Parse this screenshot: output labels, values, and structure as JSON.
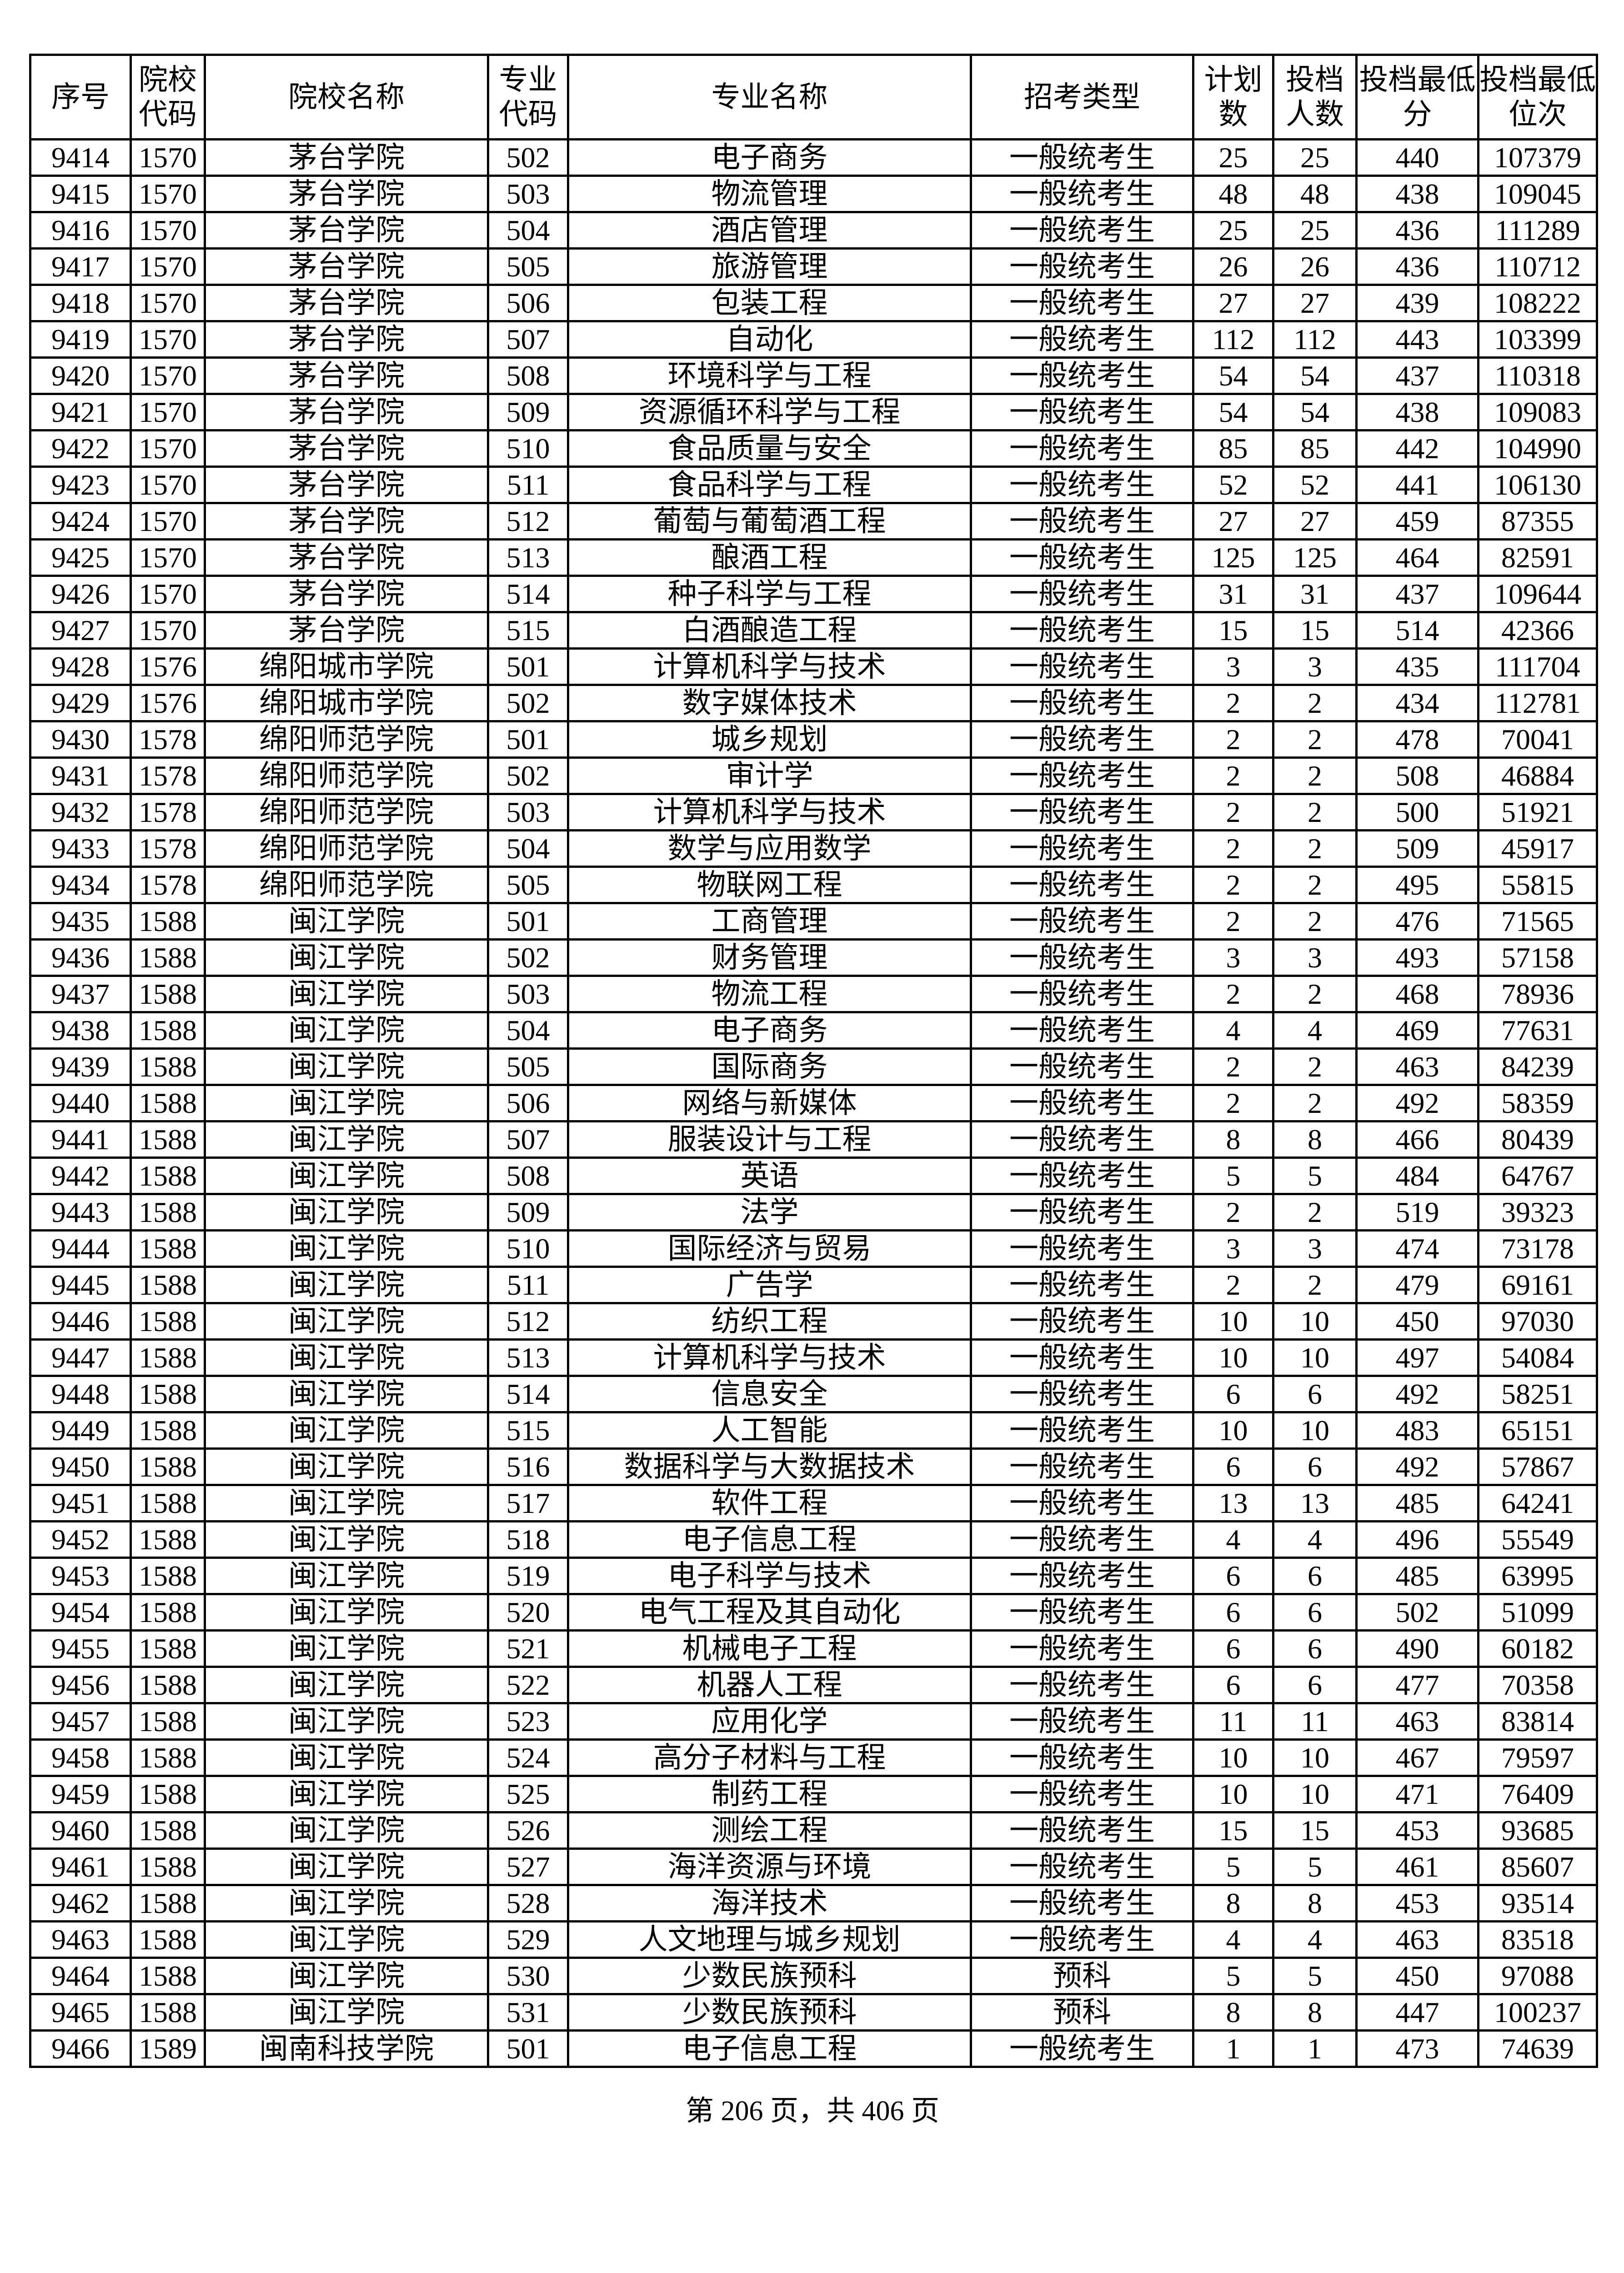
{
  "table": {
    "headers": [
      "序号",
      "院校代码",
      "院校名称",
      "专业代码",
      "专业名称",
      "招考类型",
      "计划数",
      "投档人数",
      "投档最低分",
      "投档最低位次"
    ],
    "rows": [
      [
        "9414",
        "1570",
        "茅台学院",
        "502",
        "电子商务",
        "一般统考生",
        "25",
        "25",
        "440",
        "107379"
      ],
      [
        "9415",
        "1570",
        "茅台学院",
        "503",
        "物流管理",
        "一般统考生",
        "48",
        "48",
        "438",
        "109045"
      ],
      [
        "9416",
        "1570",
        "茅台学院",
        "504",
        "酒店管理",
        "一般统考生",
        "25",
        "25",
        "436",
        "111289"
      ],
      [
        "9417",
        "1570",
        "茅台学院",
        "505",
        "旅游管理",
        "一般统考生",
        "26",
        "26",
        "436",
        "110712"
      ],
      [
        "9418",
        "1570",
        "茅台学院",
        "506",
        "包装工程",
        "一般统考生",
        "27",
        "27",
        "439",
        "108222"
      ],
      [
        "9419",
        "1570",
        "茅台学院",
        "507",
        "自动化",
        "一般统考生",
        "112",
        "112",
        "443",
        "103399"
      ],
      [
        "9420",
        "1570",
        "茅台学院",
        "508",
        "环境科学与工程",
        "一般统考生",
        "54",
        "54",
        "437",
        "110318"
      ],
      [
        "9421",
        "1570",
        "茅台学院",
        "509",
        "资源循环科学与工程",
        "一般统考生",
        "54",
        "54",
        "438",
        "109083"
      ],
      [
        "9422",
        "1570",
        "茅台学院",
        "510",
        "食品质量与安全",
        "一般统考生",
        "85",
        "85",
        "442",
        "104990"
      ],
      [
        "9423",
        "1570",
        "茅台学院",
        "511",
        "食品科学与工程",
        "一般统考生",
        "52",
        "52",
        "441",
        "106130"
      ],
      [
        "9424",
        "1570",
        "茅台学院",
        "512",
        "葡萄与葡萄酒工程",
        "一般统考生",
        "27",
        "27",
        "459",
        "87355"
      ],
      [
        "9425",
        "1570",
        "茅台学院",
        "513",
        "酿酒工程",
        "一般统考生",
        "125",
        "125",
        "464",
        "82591"
      ],
      [
        "9426",
        "1570",
        "茅台学院",
        "514",
        "种子科学与工程",
        "一般统考生",
        "31",
        "31",
        "437",
        "109644"
      ],
      [
        "9427",
        "1570",
        "茅台学院",
        "515",
        "白酒酿造工程",
        "一般统考生",
        "15",
        "15",
        "514",
        "42366"
      ],
      [
        "9428",
        "1576",
        "绵阳城市学院",
        "501",
        "计算机科学与技术",
        "一般统考生",
        "3",
        "3",
        "435",
        "111704"
      ],
      [
        "9429",
        "1576",
        "绵阳城市学院",
        "502",
        "数字媒体技术",
        "一般统考生",
        "2",
        "2",
        "434",
        "112781"
      ],
      [
        "9430",
        "1578",
        "绵阳师范学院",
        "501",
        "城乡规划",
        "一般统考生",
        "2",
        "2",
        "478",
        "70041"
      ],
      [
        "9431",
        "1578",
        "绵阳师范学院",
        "502",
        "审计学",
        "一般统考生",
        "2",
        "2",
        "508",
        "46884"
      ],
      [
        "9432",
        "1578",
        "绵阳师范学院",
        "503",
        "计算机科学与技术",
        "一般统考生",
        "2",
        "2",
        "500",
        "51921"
      ],
      [
        "9433",
        "1578",
        "绵阳师范学院",
        "504",
        "数学与应用数学",
        "一般统考生",
        "2",
        "2",
        "509",
        "45917"
      ],
      [
        "9434",
        "1578",
        "绵阳师范学院",
        "505",
        "物联网工程",
        "一般统考生",
        "2",
        "2",
        "495",
        "55815"
      ],
      [
        "9435",
        "1588",
        "闽江学院",
        "501",
        "工商管理",
        "一般统考生",
        "2",
        "2",
        "476",
        "71565"
      ],
      [
        "9436",
        "1588",
        "闽江学院",
        "502",
        "财务管理",
        "一般统考生",
        "3",
        "3",
        "493",
        "57158"
      ],
      [
        "9437",
        "1588",
        "闽江学院",
        "503",
        "物流工程",
        "一般统考生",
        "2",
        "2",
        "468",
        "78936"
      ],
      [
        "9438",
        "1588",
        "闽江学院",
        "504",
        "电子商务",
        "一般统考生",
        "4",
        "4",
        "469",
        "77631"
      ],
      [
        "9439",
        "1588",
        "闽江学院",
        "505",
        "国际商务",
        "一般统考生",
        "2",
        "2",
        "463",
        "84239"
      ],
      [
        "9440",
        "1588",
        "闽江学院",
        "506",
        "网络与新媒体",
        "一般统考生",
        "2",
        "2",
        "492",
        "58359"
      ],
      [
        "9441",
        "1588",
        "闽江学院",
        "507",
        "服装设计与工程",
        "一般统考生",
        "8",
        "8",
        "466",
        "80439"
      ],
      [
        "9442",
        "1588",
        "闽江学院",
        "508",
        "英语",
        "一般统考生",
        "5",
        "5",
        "484",
        "64767"
      ],
      [
        "9443",
        "1588",
        "闽江学院",
        "509",
        "法学",
        "一般统考生",
        "2",
        "2",
        "519",
        "39323"
      ],
      [
        "9444",
        "1588",
        "闽江学院",
        "510",
        "国际经济与贸易",
        "一般统考生",
        "3",
        "3",
        "474",
        "73178"
      ],
      [
        "9445",
        "1588",
        "闽江学院",
        "511",
        "广告学",
        "一般统考生",
        "2",
        "2",
        "479",
        "69161"
      ],
      [
        "9446",
        "1588",
        "闽江学院",
        "512",
        "纺织工程",
        "一般统考生",
        "10",
        "10",
        "450",
        "97030"
      ],
      [
        "9447",
        "1588",
        "闽江学院",
        "513",
        "计算机科学与技术",
        "一般统考生",
        "10",
        "10",
        "497",
        "54084"
      ],
      [
        "9448",
        "1588",
        "闽江学院",
        "514",
        "信息安全",
        "一般统考生",
        "6",
        "6",
        "492",
        "58251"
      ],
      [
        "9449",
        "1588",
        "闽江学院",
        "515",
        "人工智能",
        "一般统考生",
        "10",
        "10",
        "483",
        "65151"
      ],
      [
        "9450",
        "1588",
        "闽江学院",
        "516",
        "数据科学与大数据技术",
        "一般统考生",
        "6",
        "6",
        "492",
        "57867"
      ],
      [
        "9451",
        "1588",
        "闽江学院",
        "517",
        "软件工程",
        "一般统考生",
        "13",
        "13",
        "485",
        "64241"
      ],
      [
        "9452",
        "1588",
        "闽江学院",
        "518",
        "电子信息工程",
        "一般统考生",
        "4",
        "4",
        "496",
        "55549"
      ],
      [
        "9453",
        "1588",
        "闽江学院",
        "519",
        "电子科学与技术",
        "一般统考生",
        "6",
        "6",
        "485",
        "63995"
      ],
      [
        "9454",
        "1588",
        "闽江学院",
        "520",
        "电气工程及其自动化",
        "一般统考生",
        "6",
        "6",
        "502",
        "51099"
      ],
      [
        "9455",
        "1588",
        "闽江学院",
        "521",
        "机械电子工程",
        "一般统考生",
        "6",
        "6",
        "490",
        "60182"
      ],
      [
        "9456",
        "1588",
        "闽江学院",
        "522",
        "机器人工程",
        "一般统考生",
        "6",
        "6",
        "477",
        "70358"
      ],
      [
        "9457",
        "1588",
        "闽江学院",
        "523",
        "应用化学",
        "一般统考生",
        "11",
        "11",
        "463",
        "83814"
      ],
      [
        "9458",
        "1588",
        "闽江学院",
        "524",
        "高分子材料与工程",
        "一般统考生",
        "10",
        "10",
        "467",
        "79597"
      ],
      [
        "9459",
        "1588",
        "闽江学院",
        "525",
        "制药工程",
        "一般统考生",
        "10",
        "10",
        "471",
        "76409"
      ],
      [
        "9460",
        "1588",
        "闽江学院",
        "526",
        "测绘工程",
        "一般统考生",
        "15",
        "15",
        "453",
        "93685"
      ],
      [
        "9461",
        "1588",
        "闽江学院",
        "527",
        "海洋资源与环境",
        "一般统考生",
        "5",
        "5",
        "461",
        "85607"
      ],
      [
        "9462",
        "1588",
        "闽江学院",
        "528",
        "海洋技术",
        "一般统考生",
        "8",
        "8",
        "453",
        "93514"
      ],
      [
        "9463",
        "1588",
        "闽江学院",
        "529",
        "人文地理与城乡规划",
        "一般统考生",
        "4",
        "4",
        "463",
        "83518"
      ],
      [
        "9464",
        "1588",
        "闽江学院",
        "530",
        "少数民族预科",
        "预科",
        "5",
        "5",
        "450",
        "97088"
      ],
      [
        "9465",
        "1588",
        "闽江学院",
        "531",
        "少数民族预科",
        "预科",
        "8",
        "8",
        "447",
        "100237"
      ],
      [
        "9466",
        "1589",
        "闽南科技学院",
        "501",
        "电子信息工程",
        "一般统考生",
        "1",
        "1",
        "473",
        "74639"
      ]
    ]
  },
  "footer": {
    "page_info": "第 206 页，共 406 页"
  }
}
